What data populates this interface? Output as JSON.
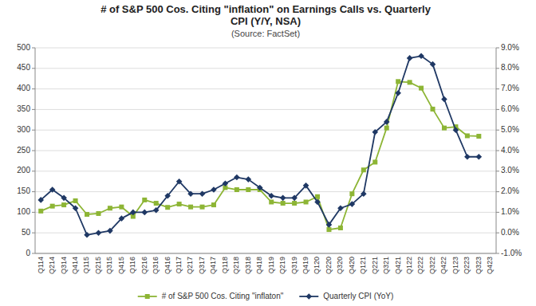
{
  "chart_data": {
    "type": "line",
    "title": [
      "# of S&P 500 Cos. Citing \"inflation\" on Earnings Calls vs. Quarterly",
      "CPI (Y/Y, NSA)"
    ],
    "annotations": [
      "(Source: FactSet)"
    ],
    "categories": [
      "Q114",
      "Q214",
      "Q314",
      "Q414",
      "Q115",
      "Q215",
      "Q315",
      "Q415",
      "Q116",
      "Q216",
      "Q316",
      "Q416",
      "Q117",
      "Q217",
      "Q317",
      "Q417",
      "Q118",
      "Q218",
      "Q318",
      "Q418",
      "Q119",
      "Q219",
      "Q319",
      "Q419",
      "Q120",
      "Q220",
      "Q320",
      "Q420",
      "Q121",
      "Q221",
      "Q321",
      "Q421",
      "Q122",
      "Q222",
      "Q322",
      "Q422",
      "Q123",
      "Q223",
      "Q323",
      "Q423"
    ],
    "series": [
      {
        "name": "# of S&P 500 Cos. Citing \"inflaton\"",
        "color": "#8DB535",
        "marker": "square",
        "values": [
          103,
          115,
          118,
          128,
          95,
          97,
          110,
          113,
          90,
          130,
          122,
          112,
          120,
          113,
          113,
          118,
          160,
          155,
          155,
          155,
          125,
          122,
          122,
          125,
          138,
          58,
          62,
          145,
          203,
          222,
          305,
          418,
          416,
          402,
          351,
          305,
          308,
          286,
          285,
          null
        ]
      },
      {
        "name": "Quarterly CPI (YoY)",
        "color": "#1F3864",
        "marker": "diamond",
        "axis": "y2",
        "values": [
          1.6,
          2.1,
          1.7,
          1.2,
          -0.1,
          0.0,
          0.1,
          0.7,
          1.0,
          1.0,
          1.1,
          1.8,
          2.5,
          1.9,
          1.9,
          2.1,
          2.4,
          2.7,
          2.6,
          2.2,
          1.8,
          1.7,
          1.7,
          2.3,
          1.5,
          0.4,
          1.2,
          1.4,
          1.9,
          4.9,
          5.4,
          6.8,
          8.5,
          8.6,
          8.2,
          6.5,
          5.0,
          3.7,
          3.7,
          null
        ]
      }
    ],
    "ylim": [
      0,
      500
    ],
    "yticks": [
      0,
      50,
      100,
      150,
      200,
      250,
      300,
      350,
      400,
      450,
      500
    ],
    "y2lim": [
      -1,
      9
    ],
    "y2ticks": [
      {
        "value": -1,
        "label": "-1.0%"
      },
      {
        "value": 0,
        "label": "0.0%"
      },
      {
        "value": 1,
        "label": "1.0%"
      },
      {
        "value": 2,
        "label": "2.0%"
      },
      {
        "value": 3,
        "label": "3.0%"
      },
      {
        "value": 4,
        "label": "4.0%"
      },
      {
        "value": 5,
        "label": "5.0%"
      },
      {
        "value": 6,
        "label": "6.0%"
      },
      {
        "value": 7,
        "label": "7.0%"
      },
      {
        "value": 8,
        "label": "8.0%"
      },
      {
        "value": 9,
        "label": "9.0%"
      }
    ],
    "grid": true,
    "legend": "bottom"
  }
}
